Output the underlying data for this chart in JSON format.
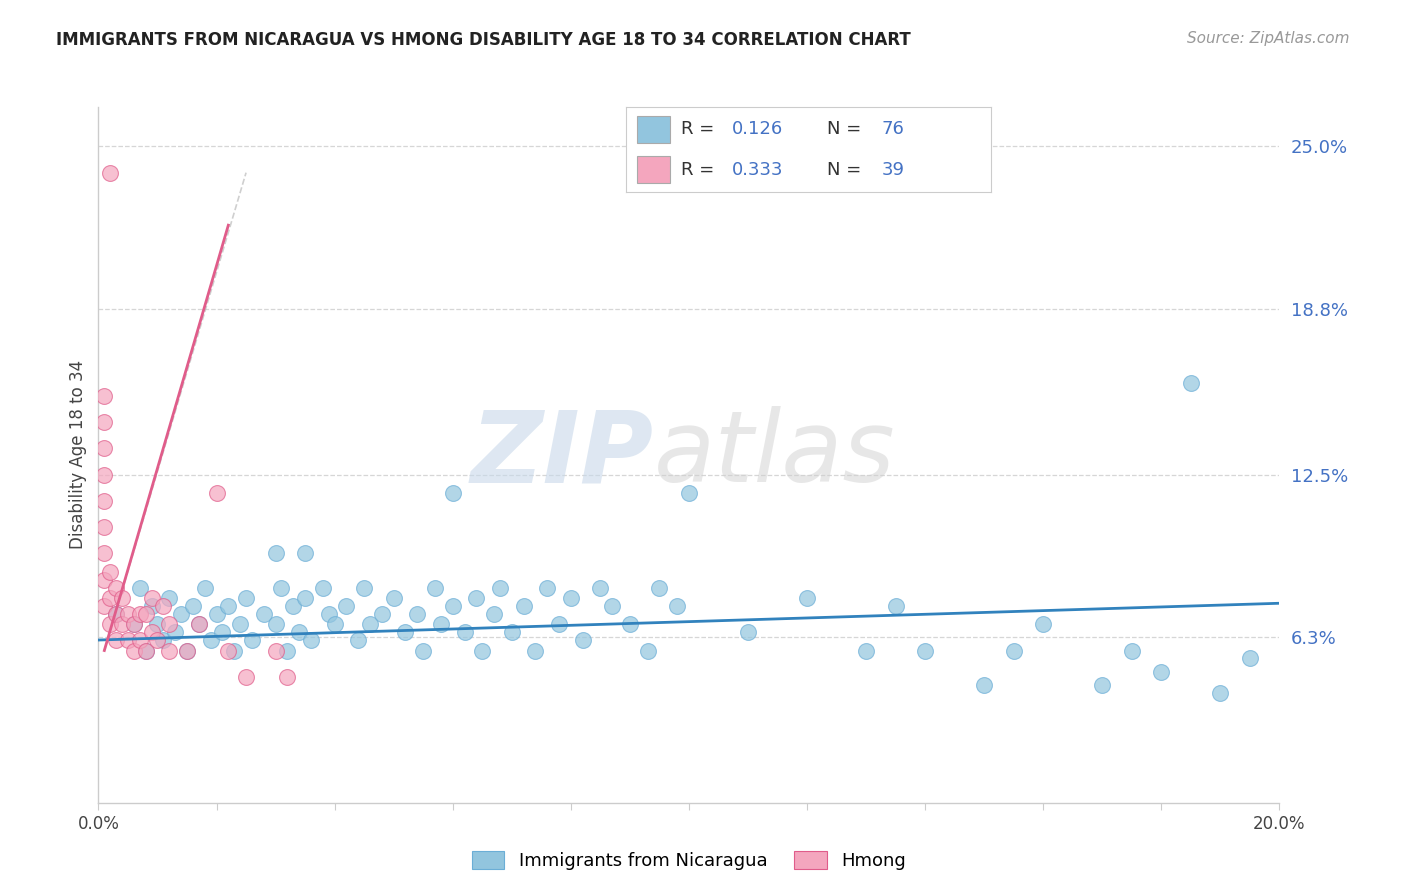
{
  "title": "IMMIGRANTS FROM NICARAGUA VS HMONG DISABILITY AGE 18 TO 34 CORRELATION CHART",
  "source": "Source: ZipAtlas.com",
  "ylabel": "Disability Age 18 to 34",
  "xlim": [
    0.0,
    0.2
  ],
  "ylim": [
    -0.01,
    0.27
  ],
  "plot_ylim": [
    0.0,
    0.265
  ],
  "xtick_labels": [
    "0.0%",
    "",
    "",
    "",
    "",
    "",
    "",
    "",
    "",
    "",
    "20.0%"
  ],
  "xtick_vals": [
    0.0,
    0.02,
    0.04,
    0.06,
    0.08,
    0.1,
    0.12,
    0.14,
    0.16,
    0.18,
    0.2
  ],
  "ytick_labels_right": [
    "6.3%",
    "12.5%",
    "18.8%",
    "25.0%"
  ],
  "ytick_vals": [
    0.063,
    0.125,
    0.188,
    0.25
  ],
  "grid_color": "#cccccc",
  "background_color": "#ffffff",
  "blue_color": "#92c5de",
  "pink_color": "#f4a6be",
  "blue_edge": "#6baed6",
  "pink_edge": "#e05c8a",
  "blue_line_color": "#3182bd",
  "pink_line_color": "#e05c8a",
  "blue_scatter": [
    [
      0.003,
      0.072
    ],
    [
      0.006,
      0.068
    ],
    [
      0.007,
      0.082
    ],
    [
      0.008,
      0.058
    ],
    [
      0.009,
      0.075
    ],
    [
      0.01,
      0.068
    ],
    [
      0.011,
      0.062
    ],
    [
      0.012,
      0.078
    ],
    [
      0.013,
      0.065
    ],
    [
      0.014,
      0.072
    ],
    [
      0.015,
      0.058
    ],
    [
      0.016,
      0.075
    ],
    [
      0.017,
      0.068
    ],
    [
      0.018,
      0.082
    ],
    [
      0.019,
      0.062
    ],
    [
      0.02,
      0.072
    ],
    [
      0.021,
      0.065
    ],
    [
      0.022,
      0.075
    ],
    [
      0.023,
      0.058
    ],
    [
      0.024,
      0.068
    ],
    [
      0.025,
      0.078
    ],
    [
      0.026,
      0.062
    ],
    [
      0.028,
      0.072
    ],
    [
      0.03,
      0.068
    ],
    [
      0.031,
      0.082
    ],
    [
      0.032,
      0.058
    ],
    [
      0.033,
      0.075
    ],
    [
      0.034,
      0.065
    ],
    [
      0.035,
      0.078
    ],
    [
      0.036,
      0.062
    ],
    [
      0.038,
      0.082
    ],
    [
      0.039,
      0.072
    ],
    [
      0.04,
      0.068
    ],
    [
      0.042,
      0.075
    ],
    [
      0.044,
      0.062
    ],
    [
      0.045,
      0.082
    ],
    [
      0.046,
      0.068
    ],
    [
      0.048,
      0.072
    ],
    [
      0.05,
      0.078
    ],
    [
      0.052,
      0.065
    ],
    [
      0.054,
      0.072
    ],
    [
      0.055,
      0.058
    ],
    [
      0.057,
      0.082
    ],
    [
      0.058,
      0.068
    ],
    [
      0.06,
      0.075
    ],
    [
      0.062,
      0.065
    ],
    [
      0.064,
      0.078
    ],
    [
      0.065,
      0.058
    ],
    [
      0.067,
      0.072
    ],
    [
      0.068,
      0.082
    ],
    [
      0.07,
      0.065
    ],
    [
      0.072,
      0.075
    ],
    [
      0.074,
      0.058
    ],
    [
      0.076,
      0.082
    ],
    [
      0.078,
      0.068
    ],
    [
      0.08,
      0.078
    ],
    [
      0.082,
      0.062
    ],
    [
      0.085,
      0.082
    ],
    [
      0.087,
      0.075
    ],
    [
      0.09,
      0.068
    ],
    [
      0.093,
      0.058
    ],
    [
      0.095,
      0.082
    ],
    [
      0.098,
      0.075
    ],
    [
      0.1,
      0.118
    ],
    [
      0.06,
      0.118
    ],
    [
      0.11,
      0.065
    ],
    [
      0.12,
      0.078
    ],
    [
      0.13,
      0.058
    ],
    [
      0.135,
      0.075
    ],
    [
      0.14,
      0.058
    ],
    [
      0.15,
      0.045
    ],
    [
      0.155,
      0.058
    ],
    [
      0.16,
      0.068
    ],
    [
      0.17,
      0.045
    ],
    [
      0.175,
      0.058
    ],
    [
      0.18,
      0.05
    ],
    [
      0.185,
      0.16
    ],
    [
      0.19,
      0.042
    ],
    [
      0.195,
      0.055
    ],
    [
      0.03,
      0.095
    ],
    [
      0.035,
      0.095
    ]
  ],
  "pink_scatter": [
    [
      0.002,
      0.24
    ],
    [
      0.001,
      0.155
    ],
    [
      0.001,
      0.145
    ],
    [
      0.001,
      0.135
    ],
    [
      0.001,
      0.125
    ],
    [
      0.001,
      0.115
    ],
    [
      0.001,
      0.105
    ],
    [
      0.001,
      0.095
    ],
    [
      0.001,
      0.085
    ],
    [
      0.001,
      0.075
    ],
    [
      0.002,
      0.068
    ],
    [
      0.002,
      0.078
    ],
    [
      0.002,
      0.088
    ],
    [
      0.003,
      0.062
    ],
    [
      0.003,
      0.072
    ],
    [
      0.003,
      0.082
    ],
    [
      0.004,
      0.068
    ],
    [
      0.004,
      0.078
    ],
    [
      0.005,
      0.062
    ],
    [
      0.005,
      0.072
    ],
    [
      0.006,
      0.058
    ],
    [
      0.006,
      0.068
    ],
    [
      0.007,
      0.072
    ],
    [
      0.007,
      0.062
    ],
    [
      0.008,
      0.058
    ],
    [
      0.008,
      0.072
    ],
    [
      0.009,
      0.065
    ],
    [
      0.009,
      0.078
    ],
    [
      0.01,
      0.062
    ],
    [
      0.011,
      0.075
    ],
    [
      0.012,
      0.058
    ],
    [
      0.012,
      0.068
    ],
    [
      0.015,
      0.058
    ],
    [
      0.017,
      0.068
    ],
    [
      0.02,
      0.118
    ],
    [
      0.022,
      0.058
    ],
    [
      0.025,
      0.048
    ],
    [
      0.03,
      0.058
    ],
    [
      0.032,
      0.048
    ]
  ],
  "blue_trend": [
    0.0,
    0.062,
    0.2,
    0.076
  ],
  "pink_trend": [
    0.001,
    0.058,
    0.022,
    0.22
  ],
  "dashed_trend": [
    0.001,
    0.058,
    0.02,
    0.22
  ]
}
